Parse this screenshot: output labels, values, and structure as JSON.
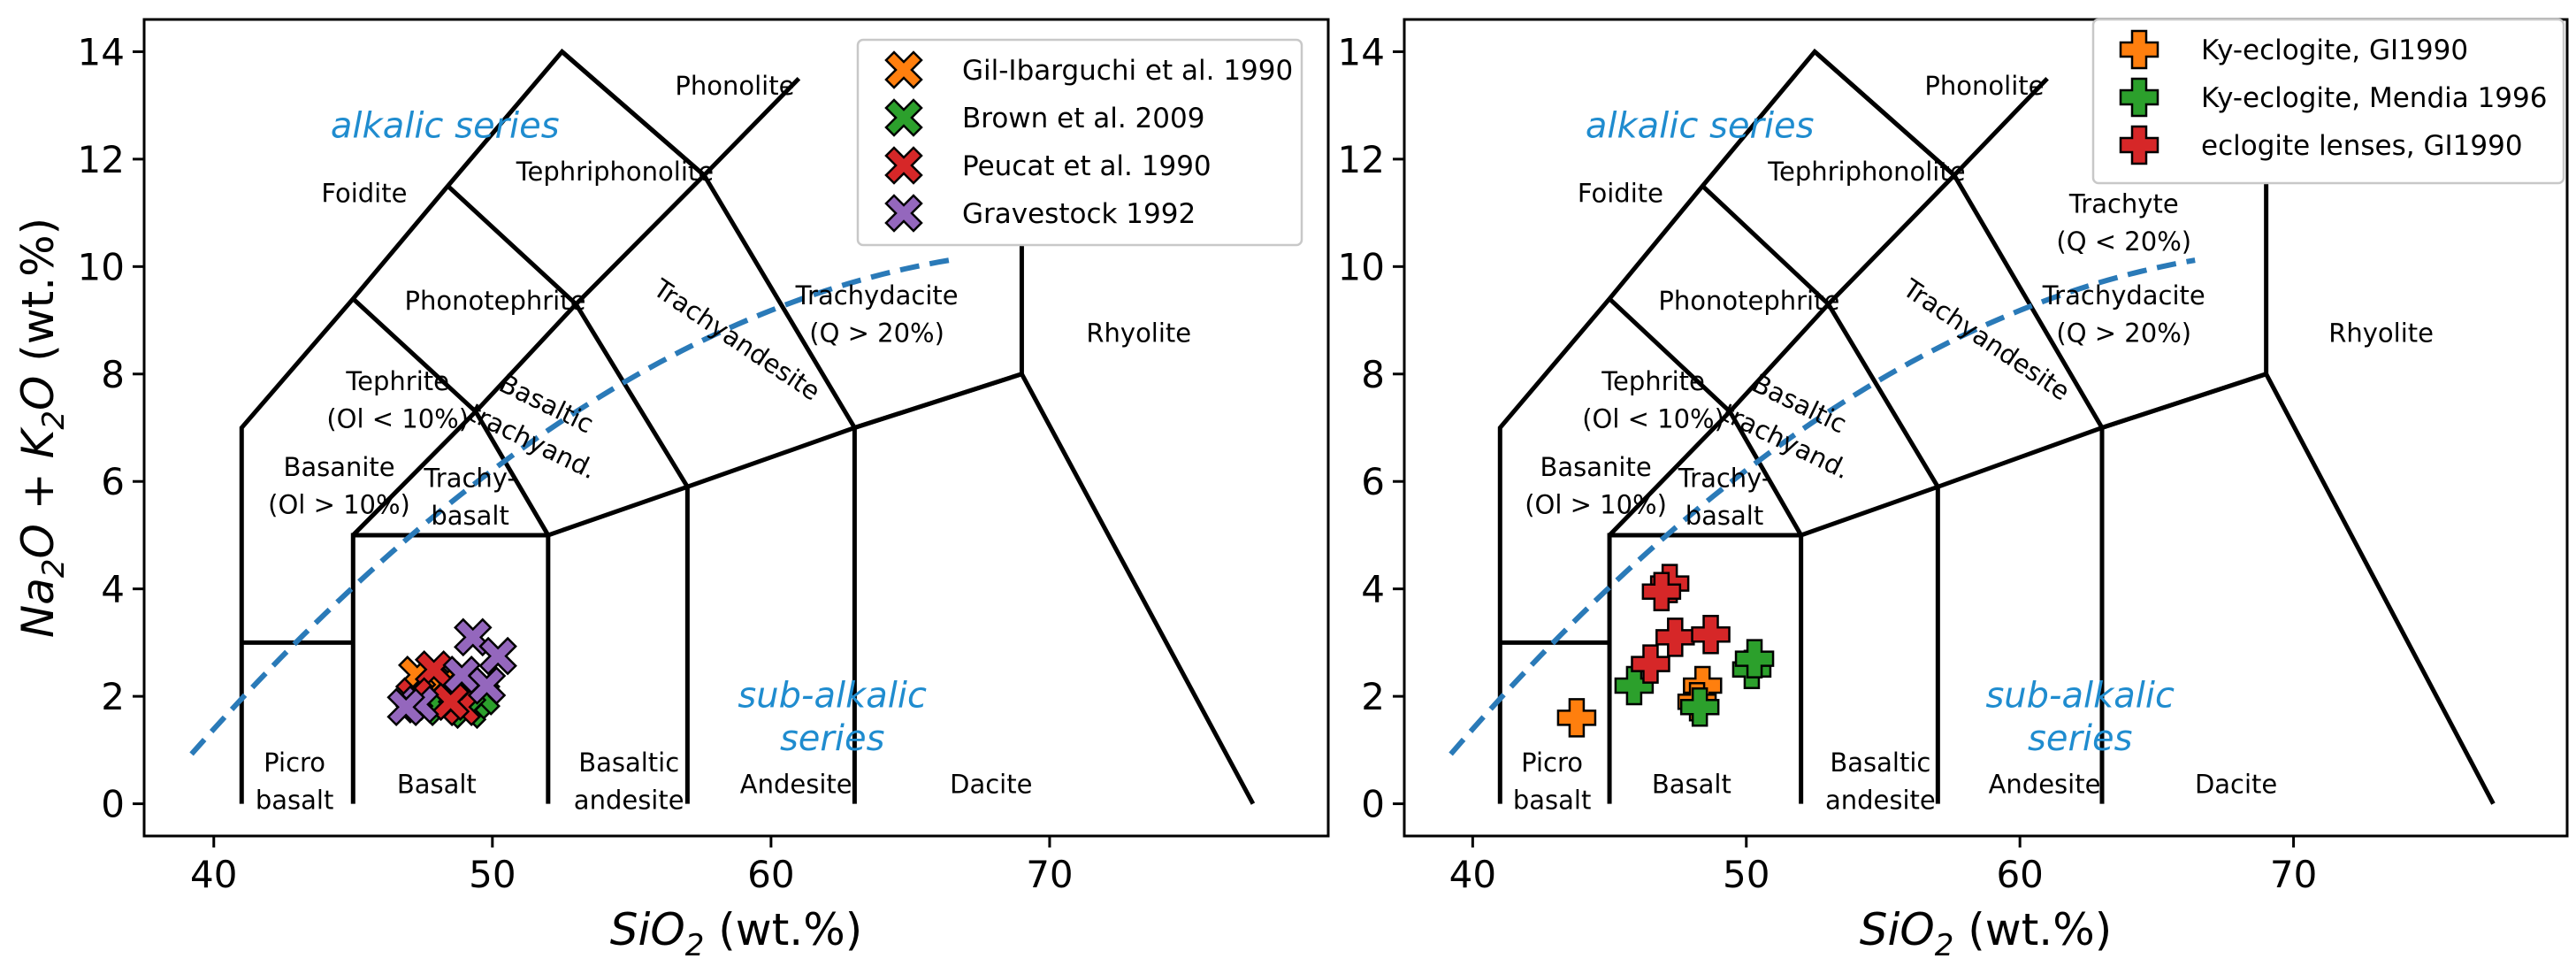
{
  "colors": {
    "orange": "#ff7f0e",
    "green": "#2ca02c",
    "red": "#d62728",
    "purple": "#9467bd",
    "divider": "#2a7ab8",
    "series_label": "#1f8ccf"
  },
  "chart_data": [
    {
      "type": "scatter",
      "title": "",
      "xlabel": "SiO2 (wt.%)",
      "ylabel": "Na2O + K2O (wt.%)",
      "xlim": [
        37.5,
        80
      ],
      "ylim": [
        -0.6,
        14.6
      ],
      "xticks": [
        "40",
        "50",
        "60",
        "70"
      ],
      "yticks": [
        "0",
        "2",
        "4",
        "6",
        "8",
        "10",
        "12",
        "14"
      ],
      "legend_position": "top-right",
      "marker": "x",
      "series_labels": [
        "alkalic series",
        "sub-alkalic series"
      ],
      "series": [
        {
          "name": "Gil-Ibarguchi et al. 1990",
          "color": "orange",
          "points": [
            [
              48.4,
              2.3
            ],
            [
              47.6,
              2.1
            ],
            [
              47.3,
              2.4
            ]
          ]
        },
        {
          "name": "Brown et al. 2009",
          "color": "green",
          "points": [
            [
              48.2,
              1.8
            ],
            [
              49.3,
              1.9
            ],
            [
              49.6,
              2.0
            ],
            [
              49.0,
              2.1
            ],
            [
              47.8,
              1.9
            ],
            [
              49.1,
              1.75
            ]
          ]
        },
        {
          "name": "Peucat et al. 1990",
          "color": "red",
          "points": [
            [
              47.9,
              2.5
            ],
            [
              48.9,
              1.8
            ],
            [
              48.5,
              1.9
            ],
            [
              47.2,
              2.0
            ]
          ]
        },
        {
          "name": "Gravestock 1992",
          "color": "purple",
          "points": [
            [
              49.3,
              3.1
            ],
            [
              50.2,
              2.75
            ],
            [
              48.9,
              2.4
            ],
            [
              47.4,
              1.85
            ],
            [
              46.9,
              1.8
            ],
            [
              49.8,
              2.2
            ]
          ]
        }
      ]
    },
    {
      "type": "scatter",
      "title": "",
      "xlabel": "SiO2 (wt.%)",
      "ylabel": "",
      "xlim": [
        37.5,
        80
      ],
      "ylim": [
        -0.6,
        14.6
      ],
      "xticks": [
        "40",
        "50",
        "60",
        "70"
      ],
      "yticks": [
        "0",
        "2",
        "4",
        "6",
        "8",
        "10",
        "12",
        "14"
      ],
      "legend_position": "top-right",
      "marker": "plus",
      "series_labels": [
        "alkalic series",
        "sub-alkalic series"
      ],
      "series": [
        {
          "name": "Ky-eclogite, GI1990",
          "color": "orange",
          "points": [
            [
              43.8,
              1.6
            ],
            [
              48.4,
              2.2
            ],
            [
              48.2,
              1.9
            ]
          ]
        },
        {
          "name": "Ky-eclogite, Mendia 1996",
          "color": "green",
          "points": [
            [
              45.9,
              2.2
            ],
            [
              48.3,
              1.8
            ],
            [
              50.2,
              2.5
            ],
            [
              50.3,
              2.7
            ]
          ]
        },
        {
          "name": "eclogite lenses, GI1990",
          "color": "red",
          "points": [
            [
              47.2,
              4.1
            ],
            [
              46.9,
              3.95
            ],
            [
              47.4,
              3.1
            ],
            [
              48.7,
              3.15
            ],
            [
              46.5,
              2.6
            ]
          ]
        }
      ]
    }
  ],
  "tas_fields": [
    "Foidite",
    "Phonolite",
    "Tephriphonolite",
    "Phonotephrite",
    "Tephrite",
    "(Ol < 10%)",
    "Basanite",
    "(Ol > 10%)",
    "Trachy-",
    "basalt",
    "Basaltic",
    "trachyand.",
    "Trachyandesite",
    "Trachydacite",
    "(Q > 20%)",
    "Rhyolite",
    "Picro",
    "basalt",
    "Basalt",
    "Basaltic",
    "andesite",
    "Andesite",
    "Dacite"
  ],
  "tas_fields_extra": [
    "Trachyte",
    "(Q < 20%)"
  ],
  "series_text": {
    "alkalic": "alkalic series",
    "subalkalic_1": "sub-alkalic",
    "subalkalic_2": "series"
  }
}
